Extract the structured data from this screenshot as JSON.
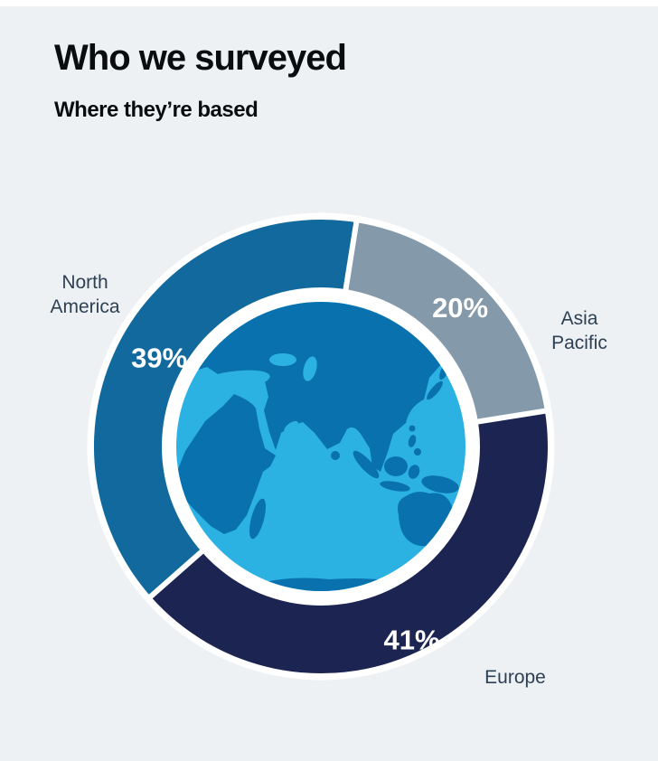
{
  "page": {
    "title": "Who we surveyed",
    "subtitle": "Where they’re based",
    "background": "#eef1f4",
    "top_strip_color": "#ffffff",
    "title_color": "#0b0c10",
    "region_label_color": "#2e4054"
  },
  "chart_data": {
    "type": "pie",
    "subtype": "donut",
    "title": "Who we surveyed",
    "subtitle": "Where they’re based",
    "unit": "%",
    "total": 100,
    "clockwise": true,
    "start_angle_deg": 228.6,
    "labels": "outside",
    "value_labels": "inside-ring",
    "center_graphic": "globe showing Africa, Asia and Australia (Indian Ocean view)",
    "categories": [
      "North America",
      "Asia Pacific",
      "Europe"
    ],
    "values": [
      39,
      20,
      41
    ],
    "segments": [
      {
        "label": "North America",
        "value": 39,
        "display": "39%",
        "color": "#11699e",
        "label_radius": 204
      },
      {
        "label": "Asia Pacific",
        "value": 20,
        "display": "20%",
        "color": "#8499aa",
        "label_radius": 218
      },
      {
        "label": "Europe",
        "value": 41,
        "display": "41%",
        "color": "#1c2552",
        "label_radius": 236
      }
    ],
    "ring": {
      "outer_radius": 251,
      "inner_radius": 176,
      "halo_color": "#ffffff",
      "gap_color": "#ffffff"
    },
    "globe": {
      "ocean_color": "#2cb1e3",
      "land_color": "#0972ae",
      "ring_color": "#ffffff"
    }
  }
}
